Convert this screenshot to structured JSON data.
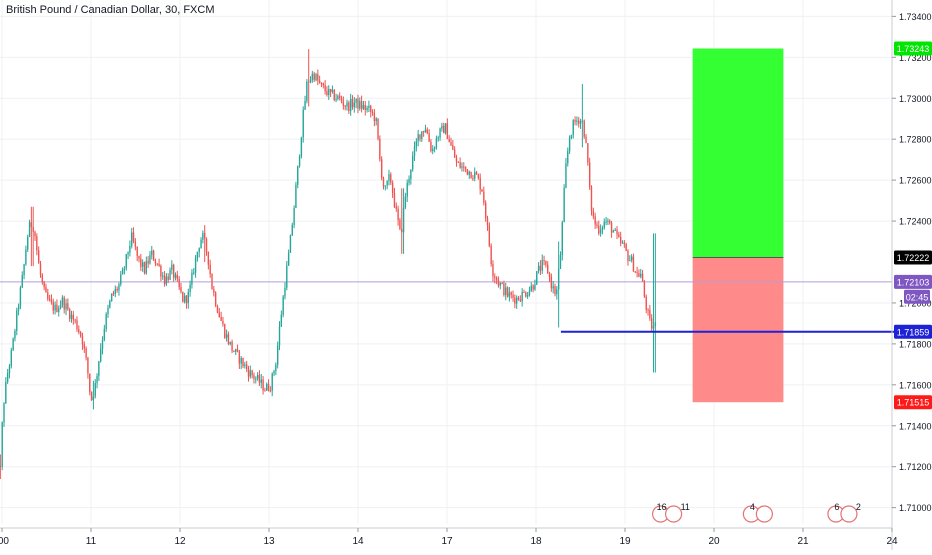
{
  "chart_data": {
    "type": "candlestick",
    "title": "British Pound / Canadian Dollar, 30, FXCM",
    "colors": {
      "up": "#26a69a",
      "down": "#ef5350",
      "profit_zone": "#33ff33",
      "loss_zone": "#ff8a8a",
      "horizontal_line": "#1e22d6",
      "price_line": "#b39ddb",
      "countdown_badge": "#7e57c2",
      "grid": "#eef0f3",
      "axis_text": "#131722"
    },
    "y_axis": {
      "range": [
        1.7092,
        1.7348
      ],
      "ticks": [
        "1.73400",
        "1.73200",
        "1.73000",
        "1.72800",
        "1.72600",
        "1.72400",
        "1.72000",
        "1.71800",
        "1.71600",
        "1.71400",
        "1.71200",
        "1.71000"
      ]
    },
    "x_axis": {
      "ticks": [
        {
          "label": ":00",
          "x": 0
        },
        {
          "label": "11",
          "x": 1
        },
        {
          "label": "12",
          "x": 2
        },
        {
          "label": "13",
          "x": 3
        },
        {
          "label": "14",
          "x": 4
        },
        {
          "label": "17",
          "x": 5
        },
        {
          "label": "18",
          "x": 6
        },
        {
          "label": "19",
          "x": 7
        },
        {
          "label": "20",
          "x": 8
        },
        {
          "label": "21",
          "x": 9
        },
        {
          "label": "24",
          "x": 10
        }
      ]
    },
    "price_path": [
      [
        -0.08,
        1.7148
      ],
      [
        -0.06,
        1.7138
      ],
      [
        -0.03,
        1.7126
      ],
      [
        0.0,
        1.7116
      ],
      [
        0.03,
        1.7148
      ],
      [
        0.08,
        1.7165
      ],
      [
        0.13,
        1.7176
      ],
      [
        0.2,
        1.7198
      ],
      [
        0.26,
        1.7215
      ],
      [
        0.3,
        1.7231
      ],
      [
        0.34,
        1.7239
      ],
      [
        0.38,
        1.7237
      ],
      [
        0.44,
        1.7216
      ],
      [
        0.5,
        1.7204
      ],
      [
        0.55,
        1.72
      ],
      [
        0.62,
        1.7197
      ],
      [
        0.7,
        1.7201
      ],
      [
        0.78,
        1.7195
      ],
      [
        0.85,
        1.719
      ],
      [
        0.92,
        1.7183
      ],
      [
        0.98,
        1.7168
      ],
      [
        1.02,
        1.7152
      ],
      [
        1.07,
        1.716
      ],
      [
        1.12,
        1.7176
      ],
      [
        1.18,
        1.7191
      ],
      [
        1.25,
        1.7203
      ],
      [
        1.33,
        1.7208
      ],
      [
        1.4,
        1.7218
      ],
      [
        1.45,
        1.7228
      ],
      [
        1.48,
        1.7232
      ],
      [
        1.55,
        1.7221
      ],
      [
        1.62,
        1.7216
      ],
      [
        1.7,
        1.7224
      ],
      [
        1.78,
        1.7218
      ],
      [
        1.85,
        1.7211
      ],
      [
        1.93,
        1.7216
      ],
      [
        2.0,
        1.7208
      ],
      [
        2.06,
        1.7201
      ],
      [
        2.12,
        1.7204
      ],
      [
        2.18,
        1.7218
      ],
      [
        2.23,
        1.7228
      ],
      [
        2.27,
        1.7233
      ],
      [
        2.33,
        1.7224
      ],
      [
        2.38,
        1.7208
      ],
      [
        2.45,
        1.7196
      ],
      [
        2.52,
        1.7186
      ],
      [
        2.6,
        1.7178
      ],
      [
        2.7,
        1.7172
      ],
      [
        2.8,
        1.7166
      ],
      [
        2.9,
        1.7162
      ],
      [
        2.98,
        1.7158
      ],
      [
        3.04,
        1.716
      ],
      [
        3.1,
        1.7172
      ],
      [
        3.15,
        1.7192
      ],
      [
        3.2,
        1.721
      ],
      [
        3.25,
        1.7226
      ],
      [
        3.3,
        1.7246
      ],
      [
        3.35,
        1.7268
      ],
      [
        3.4,
        1.729
      ],
      [
        3.45,
        1.7308
      ],
      [
        3.52,
        1.7312
      ],
      [
        3.6,
        1.7306
      ],
      [
        3.7,
        1.7302
      ],
      [
        3.8,
        1.73
      ],
      [
        3.9,
        1.7296
      ],
      [
        3.98,
        1.7298
      ],
      [
        4.06,
        1.7296
      ],
      [
        4.15,
        1.7294
      ],
      [
        4.22,
        1.729
      ],
      [
        4.27,
        1.7268
      ],
      [
        4.32,
        1.7254
      ],
      [
        4.38,
        1.7262
      ],
      [
        4.45,
        1.7244
      ],
      [
        4.5,
        1.7232
      ],
      [
        4.55,
        1.7252
      ],
      [
        4.62,
        1.7268
      ],
      [
        4.7,
        1.7282
      ],
      [
        4.78,
        1.7286
      ],
      [
        4.85,
        1.7274
      ],
      [
        4.92,
        1.7282
      ],
      [
        5.0,
        1.7286
      ],
      [
        5.07,
        1.7276
      ],
      [
        5.13,
        1.7268
      ],
      [
        5.2,
        1.7266
      ],
      [
        5.28,
        1.7264
      ],
      [
        5.35,
        1.7262
      ],
      [
        5.42,
        1.7255
      ],
      [
        5.47,
        1.7238
      ],
      [
        5.53,
        1.7216
      ],
      [
        5.6,
        1.721
      ],
      [
        5.7,
        1.7204
      ],
      [
        5.8,
        1.7202
      ],
      [
        5.9,
        1.7205
      ],
      [
        5.98,
        1.7208
      ],
      [
        6.05,
        1.7216
      ],
      [
        6.1,
        1.7219
      ],
      [
        6.15,
        1.7216
      ],
      [
        6.2,
        1.7208
      ],
      [
        6.25,
        1.7204
      ],
      [
        6.3,
        1.7226
      ],
      [
        6.35,
        1.7264
      ],
      [
        6.4,
        1.7282
      ],
      [
        6.45,
        1.7288
      ],
      [
        6.5,
        1.729
      ],
      [
        6.55,
        1.7288
      ],
      [
        6.6,
        1.727
      ],
      [
        6.63,
        1.725
      ],
      [
        6.67,
        1.724
      ],
      [
        6.72,
        1.7236
      ],
      [
        6.8,
        1.724
      ],
      [
        6.88,
        1.7236
      ],
      [
        6.95,
        1.723
      ],
      [
        7.0,
        1.7228
      ],
      [
        7.05,
        1.7223
      ],
      [
        7.1,
        1.722
      ],
      [
        7.15,
        1.7214
      ],
      [
        7.2,
        1.7214
      ],
      [
        7.25,
        1.72
      ],
      [
        7.3,
        1.719
      ],
      [
        7.33,
        1.7188
      ],
      [
        7.36,
        1.7189
      ]
    ],
    "wick_extremes": [
      [
        -0.03,
        1.7126,
        1.7114
      ],
      [
        0.34,
        1.7247,
        1.7218
      ],
      [
        1.02,
        1.7162,
        1.7148
      ],
      [
        2.27,
        1.7238,
        1.722
      ],
      [
        3.45,
        1.7324,
        1.7296
      ],
      [
        4.5,
        1.7256,
        1.7224
      ],
      [
        6.52,
        1.7307,
        1.7276
      ],
      [
        6.25,
        1.723,
        1.7188
      ],
      [
        7.33,
        1.7234,
        1.7166
      ]
    ],
    "horizontal_line": {
      "value": 1.71859,
      "x_start": 6.28,
      "x_end": 10.6
    },
    "current_price_line": {
      "value": 1.72103
    },
    "position": {
      "x_start": 7.76,
      "x_end": 8.78,
      "entry": 1.72222,
      "target": 1.73243,
      "stop": 1.71515
    },
    "price_labels": [
      {
        "text": "1.73243",
        "value": 1.73243,
        "bg": "#00e600"
      },
      {
        "text": "1.72222",
        "value": 1.72222,
        "bg": "#000000"
      },
      {
        "text": "1.72103",
        "value": 1.72103,
        "bg": "#7e57c2"
      },
      {
        "text": "02:45",
        "value": 1.7203,
        "bg": "#7e57c2"
      },
      {
        "text": "1.71859",
        "value": 1.71859,
        "bg": "#1e22d6"
      },
      {
        "text": "1.71515",
        "value": 1.71515,
        "bg": "#ff1a1a"
      }
    ],
    "events": [
      {
        "x": 7.4,
        "label": "16",
        "extra": "11"
      },
      {
        "x": 8.42,
        "label": "4",
        "extra": ""
      },
      {
        "x": 9.37,
        "label": "6",
        "extra": "2"
      }
    ]
  }
}
